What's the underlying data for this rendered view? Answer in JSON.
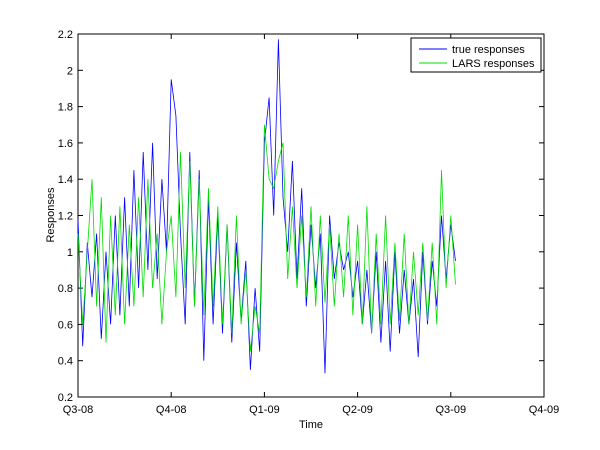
{
  "chart_data": {
    "type": "line",
    "title": "",
    "xlabel": "Time",
    "ylabel": "Responses",
    "categories": [
      "Q3-08",
      "Q4-08",
      "Q1-09",
      "Q2-09",
      "Q3-09",
      "Q4-09"
    ],
    "xlim": [
      0,
      5
    ],
    "ylim": [
      0.2,
      2.2
    ],
    "yticks": [
      0.2,
      0.4,
      0.6,
      0.8,
      1.0,
      1.2,
      1.4,
      1.6,
      1.8,
      2.0,
      2.2
    ],
    "ytick_labels": [
      "0.2",
      "0.4",
      "0.6",
      "0.8",
      "1",
      "1.2",
      "1.4",
      "1.6",
      "1.8",
      "2",
      "2.2"
    ],
    "grid": false,
    "legend_position": "top-right",
    "series": [
      {
        "name": "true responses",
        "color": "#0000ff",
        "x": [
          0.0,
          0.05,
          0.1,
          0.15,
          0.2,
          0.25,
          0.3,
          0.35,
          0.4,
          0.45,
          0.5,
          0.55,
          0.6,
          0.65,
          0.7,
          0.75,
          0.8,
          0.85,
          0.9,
          0.95,
          1.0,
          1.05,
          1.1,
          1.15,
          1.2,
          1.25,
          1.3,
          1.35,
          1.4,
          1.45,
          1.5,
          1.55,
          1.6,
          1.65,
          1.7,
          1.75,
          1.8,
          1.85,
          1.9,
          1.95,
          2.0,
          2.05,
          2.1,
          2.15,
          2.2,
          2.25,
          2.3,
          2.35,
          2.4,
          2.45,
          2.5,
          2.55,
          2.6,
          2.65,
          2.7,
          2.75,
          2.8,
          2.85,
          2.9,
          2.95,
          3.0,
          3.05,
          3.1,
          3.15,
          3.2,
          3.25,
          3.3,
          3.35,
          3.4,
          3.45,
          3.5,
          3.55,
          3.6,
          3.65,
          3.7,
          3.75,
          3.8,
          3.85,
          3.9,
          3.95,
          4.0,
          4.05
        ],
        "values": [
          1.18,
          0.48,
          1.05,
          0.75,
          1.1,
          0.52,
          1.0,
          0.6,
          1.2,
          0.65,
          1.3,
          0.7,
          1.45,
          0.8,
          1.55,
          0.9,
          1.6,
          0.85,
          1.4,
          1.0,
          1.95,
          1.75,
          1.1,
          0.6,
          1.55,
          0.7,
          1.45,
          0.4,
          1.3,
          0.6,
          1.2,
          0.55,
          1.15,
          0.5,
          1.05,
          0.62,
          0.95,
          0.35,
          0.8,
          0.45,
          1.6,
          1.85,
          1.2,
          2.17,
          1.3,
          1.0,
          1.5,
          0.85,
          1.35,
          0.7,
          1.15,
          0.8,
          1.1,
          0.33,
          1.2,
          0.85,
          1.05,
          0.9,
          1.0,
          0.75,
          0.95,
          0.6,
          0.9,
          0.55,
          1.0,
          0.5,
          0.95,
          0.45,
          1.0,
          0.55,
          0.9,
          0.6,
          0.85,
          0.42,
          1.0,
          0.6,
          0.95,
          0.7,
          1.2,
          0.85,
          1.15,
          0.95
        ]
      },
      {
        "name": "LARS responses",
        "color": "#00dd00",
        "x": [
          0.0,
          0.05,
          0.1,
          0.15,
          0.2,
          0.25,
          0.3,
          0.35,
          0.4,
          0.45,
          0.5,
          0.55,
          0.6,
          0.65,
          0.7,
          0.75,
          0.8,
          0.85,
          0.9,
          0.95,
          1.0,
          1.05,
          1.1,
          1.15,
          1.2,
          1.25,
          1.3,
          1.35,
          1.4,
          1.45,
          1.5,
          1.55,
          1.6,
          1.65,
          1.7,
          1.75,
          1.8,
          1.85,
          1.9,
          1.95,
          2.0,
          2.05,
          2.1,
          2.15,
          2.2,
          2.25,
          2.3,
          2.35,
          2.4,
          2.45,
          2.5,
          2.55,
          2.6,
          2.65,
          2.7,
          2.75,
          2.8,
          2.85,
          2.9,
          2.95,
          3.0,
          3.05,
          3.1,
          3.15,
          3.2,
          3.25,
          3.3,
          3.35,
          3.4,
          3.45,
          3.5,
          3.55,
          3.6,
          3.65,
          3.7,
          3.75,
          3.8,
          3.85,
          3.9,
          3.95,
          4.0,
          4.05
        ],
        "values": [
          1.1,
          0.6,
          1.0,
          1.4,
          0.7,
          1.3,
          0.5,
          1.2,
          0.65,
          1.25,
          0.6,
          1.15,
          0.7,
          1.3,
          0.75,
          1.4,
          0.8,
          1.1,
          0.6,
          1.0,
          1.2,
          0.75,
          1.55,
          0.8,
          1.5,
          0.7,
          1.4,
          0.65,
          1.35,
          0.7,
          1.25,
          0.6,
          1.15,
          0.55,
          1.2,
          0.6,
          0.9,
          0.45,
          0.7,
          0.55,
          1.7,
          1.4,
          1.35,
          1.5,
          1.6,
          0.85,
          1.25,
          0.8,
          1.2,
          0.75,
          1.25,
          0.7,
          1.2,
          0.72,
          1.15,
          0.7,
          1.1,
          0.75,
          1.2,
          0.65,
          1.15,
          0.6,
          1.25,
          0.55,
          1.1,
          0.6,
          1.2,
          0.6,
          1.05,
          0.62,
          1.1,
          0.6,
          1.0,
          0.65,
          1.05,
          0.62,
          1.05,
          0.6,
          1.45,
          0.8,
          1.2,
          0.82
        ]
      }
    ]
  }
}
